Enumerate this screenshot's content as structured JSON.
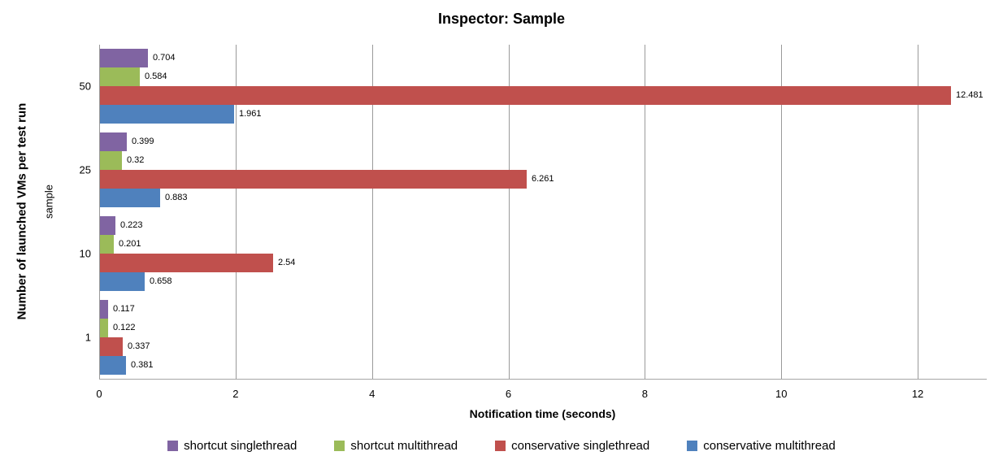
{
  "chart_data": {
    "type": "bar",
    "orientation": "horizontal",
    "title": "Inspector: Sample",
    "xlabel": "Notification time (seconds)",
    "ylabel_outer": "Number of launched VMs per test run",
    "ylabel_inner": "sample",
    "categories": [
      "50",
      "25",
      "10",
      "1"
    ],
    "series": [
      {
        "name": "shortcut singlethread",
        "color": "#8064A2",
        "values": [
          0.704,
          0.399,
          0.223,
          0.117
        ],
        "labels": [
          "0.704",
          "0.399",
          "0.223",
          "0.117"
        ]
      },
      {
        "name": "shortcut multithread",
        "color": "#9BBB59",
        "values": [
          0.584,
          0.32,
          0.201,
          0.122
        ],
        "labels": [
          "0.584",
          "0.32",
          "0.201",
          "0.122"
        ]
      },
      {
        "name": "conservative singlethread",
        "color": "#C0504D",
        "values": [
          12.481,
          6.261,
          2.54,
          0.337
        ],
        "labels": [
          "12.481",
          "6.261",
          "2.54",
          "0.337"
        ]
      },
      {
        "name": "conservative multithread",
        "color": "#4F81BD",
        "values": [
          1.961,
          0.883,
          0.658,
          0.381
        ],
        "labels": [
          "1.961",
          "0.883",
          "0.658",
          "0.381"
        ]
      }
    ],
    "xlim": [
      0,
      13
    ],
    "xticks": [
      0,
      2,
      4,
      6,
      8,
      10,
      12
    ],
    "grid": "vertical",
    "legend_position": "bottom",
    "gridline_color": "#9a9a9a",
    "axis_line_color": "#a6a6a6"
  }
}
